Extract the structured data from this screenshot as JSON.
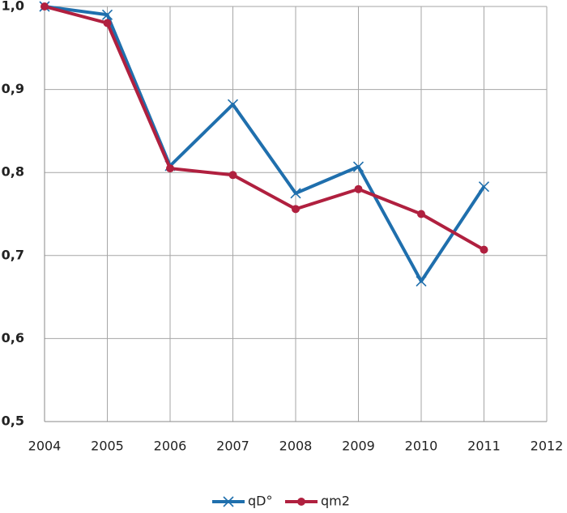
{
  "chart_data": {
    "type": "line",
    "x": [
      2004,
      2005,
      2006,
      2007,
      2008,
      2009,
      2010,
      2011
    ],
    "series": [
      {
        "name": "qD°",
        "color": "#1f6fad",
        "marker": "x",
        "values": [
          1.0,
          0.99,
          0.808,
          0.882,
          0.775,
          0.807,
          0.669,
          0.783
        ]
      },
      {
        "name": "qm2",
        "color": "#b0203f",
        "marker": "circle",
        "values": [
          1.0,
          0.98,
          0.805,
          0.797,
          0.756,
          0.78,
          0.75,
          0.707
        ]
      }
    ],
    "xlim": [
      2004,
      2012
    ],
    "xticks": [
      2004,
      2005,
      2006,
      2007,
      2008,
      2009,
      2010,
      2011,
      2012
    ],
    "ylim": [
      0.5,
      1.0
    ],
    "yticks": [
      {
        "value": 0.5,
        "label": "0,5"
      },
      {
        "value": 0.6,
        "label": "0,6"
      },
      {
        "value": 0.7,
        "label": "0,7"
      },
      {
        "value": 0.8,
        "label": "0,8"
      },
      {
        "value": 0.9,
        "label": "0,9"
      },
      {
        "value": 1.0,
        "label": "1,0"
      }
    ],
    "grid": true,
    "legend": "bottom"
  }
}
